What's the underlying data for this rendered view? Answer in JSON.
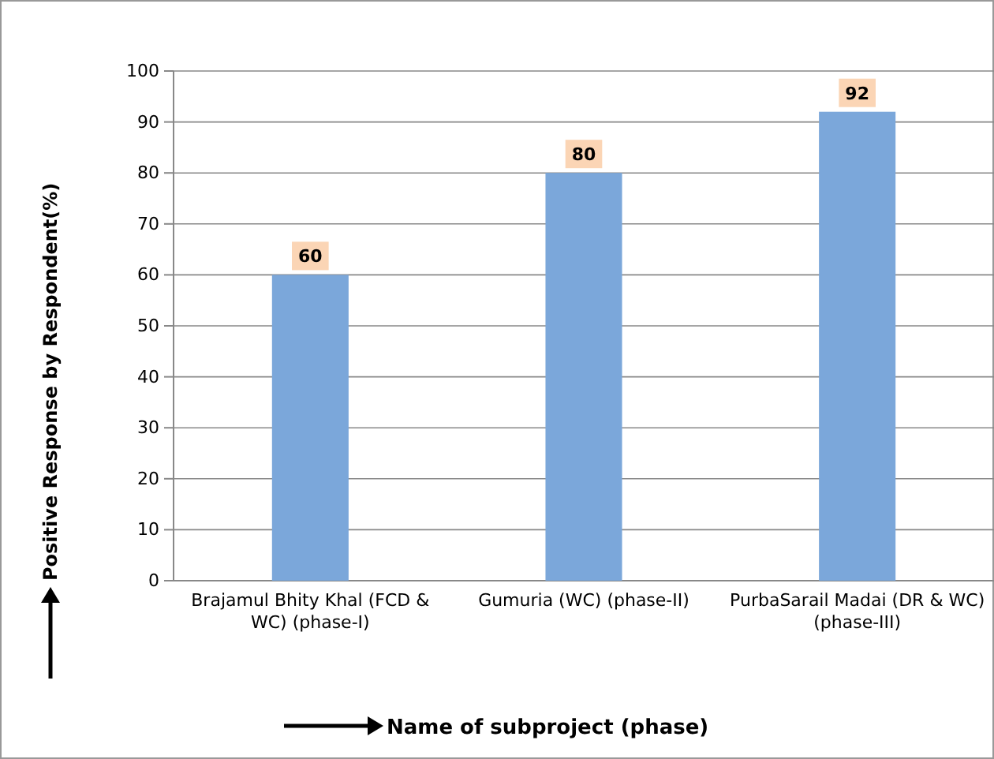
{
  "chart_data": {
    "type": "bar",
    "categories": [
      "Brajamul Bhity Khal (FCD & WC) (phase-I)",
      "Gumuria (WC) (phase-II)",
      "PurbaSarail Madai (DR & WC) (phase-III)"
    ],
    "values": [
      60,
      80,
      92
    ],
    "color": "#7ba7da",
    "ylim": [
      0,
      100
    ],
    "yticks": [
      0,
      10,
      20,
      30,
      40,
      50,
      60,
      70,
      80,
      90,
      100
    ],
    "grid": "y",
    "data_labels": true,
    "xlabel": "Name of subproject (phase)",
    "ylabel": "Positive Response by Respondent(%)"
  }
}
